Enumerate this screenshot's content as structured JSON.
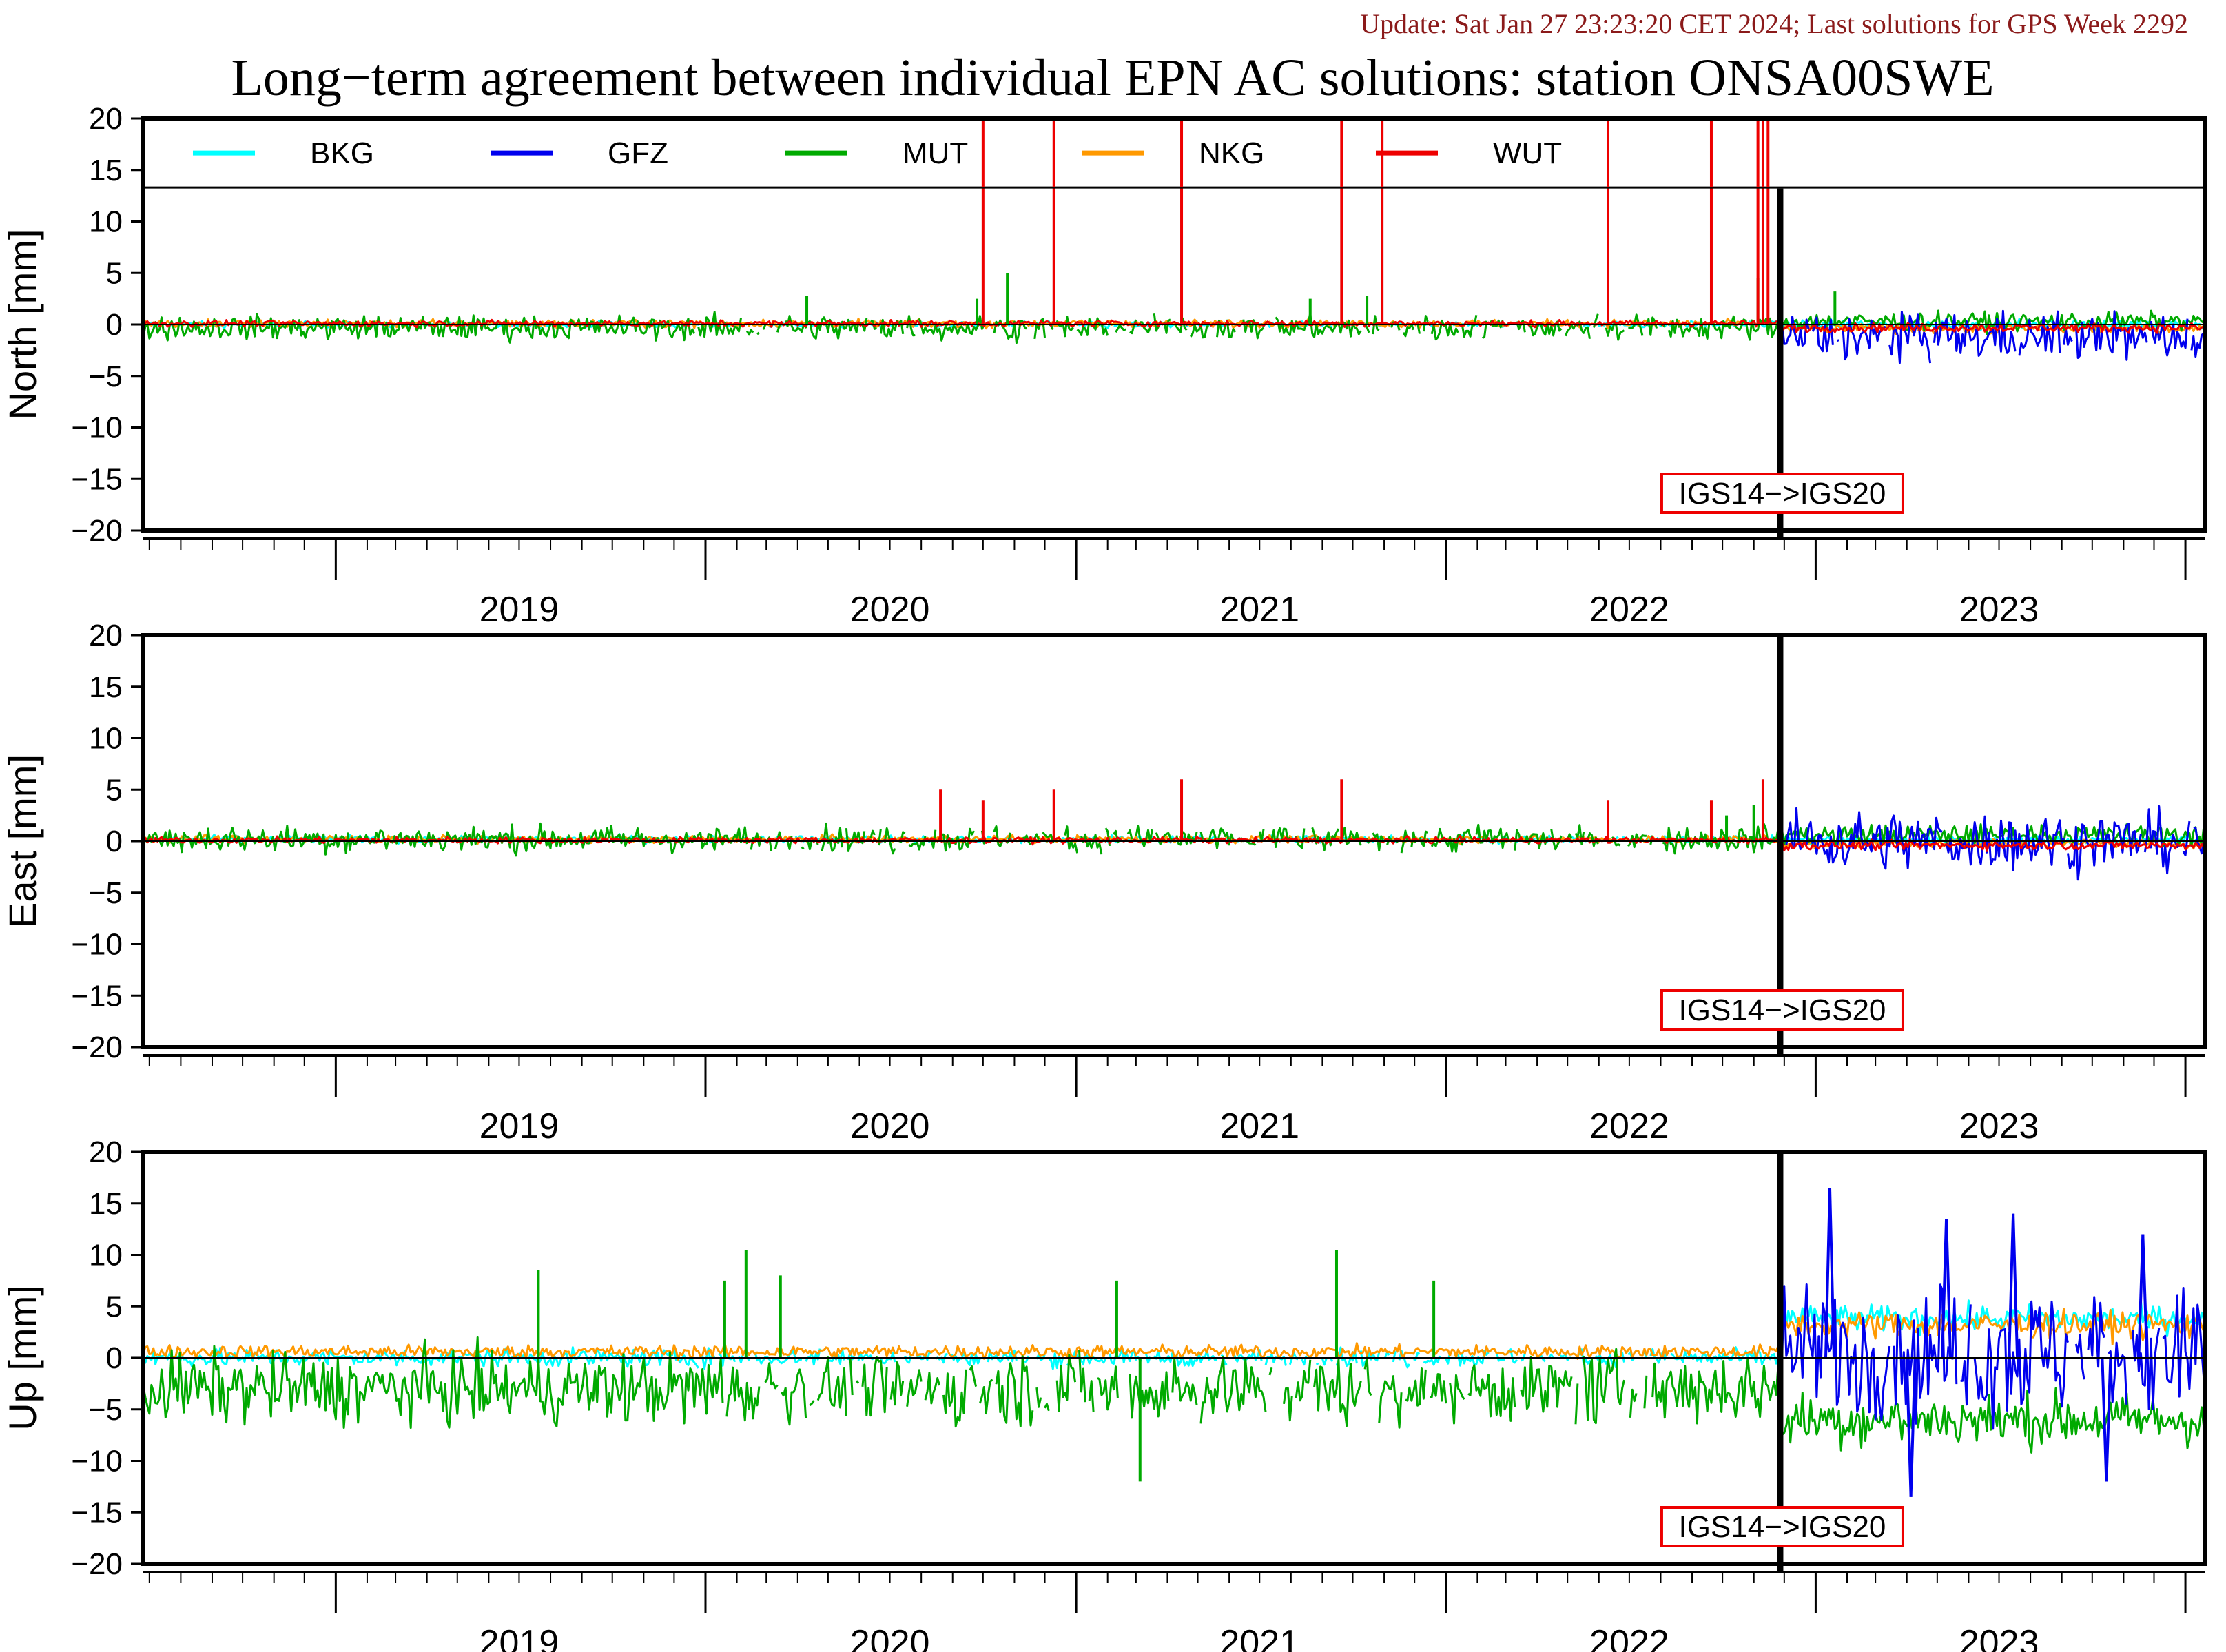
{
  "update_text": "Update: Sat Jan 27 23:23:20 CET 2024; Last solutions for GPS Week 2292",
  "colors": {
    "BKG": "#00ffff",
    "GFZ": "#0000ee",
    "MUT": "#00aa00",
    "NKG": "#ff9900",
    "WUT": "#ee0000",
    "annotation_border": "#ee0000",
    "update_text": "#8b1a1a"
  },
  "chart_data": {
    "type": "line",
    "title": "Long−term agreement between individual EPN AC solutions: station ONSA00SWE",
    "xlim": [
      "2018-06-25",
      "2024-01-20"
    ],
    "x_year_labels": [
      "2019",
      "2020",
      "2021",
      "2022",
      "2023"
    ],
    "y_tick_labels": [
      "20",
      "15",
      "10",
      "5",
      "0",
      "−5",
      "−10",
      "−15",
      "−20"
    ],
    "legend": {
      "placement": "top-inside-north-panel",
      "entries": [
        "BKG",
        "GFZ",
        "MUT",
        "NKG",
        "WUT"
      ]
    },
    "grid": false,
    "annotation": {
      "text": "IGS14−>IGS20",
      "x": "2022-11-27"
    },
    "panels": [
      {
        "ylabel": "North [mm]",
        "ylim": [
          -20,
          20
        ],
        "series": [
          {
            "name": "BKG",
            "level": 0.0,
            "noise": 0.2,
            "level_after": 0.0,
            "noise_after": 0.3
          },
          {
            "name": "GFZ",
            "start": "2022-11-27",
            "level_after": -1.2,
            "noise_after": 1.6
          },
          {
            "name": "MUT",
            "level": -0.3,
            "noise": 0.8,
            "level_after": 0.3,
            "noise_after": 0.6
          },
          {
            "name": "NKG",
            "level": 0.1,
            "noise": 0.25,
            "level_after": -0.4,
            "noise_after": 0.3
          },
          {
            "name": "WUT",
            "level": 0.1,
            "noise": 0.2,
            "level_after": -0.3,
            "noise_after": 0.3
          }
        ],
        "wut_spikes": [
          {
            "x": "2020-10-01",
            "y": 20
          },
          {
            "x": "2020-12-10",
            "y": 20
          },
          {
            "x": "2021-04-15",
            "y": 20
          },
          {
            "x": "2021-09-20",
            "y": 20
          },
          {
            "x": "2021-10-30",
            "y": 20
          },
          {
            "x": "2022-06-10",
            "y": 20
          },
          {
            "x": "2022-09-20",
            "y": 20
          },
          {
            "x": "2022-11-05",
            "y": 20
          },
          {
            "x": "2022-11-10",
            "y": 20
          },
          {
            "x": "2022-11-15",
            "y": 20
          }
        ],
        "mut_spikes": [
          {
            "x": "2020-04-10",
            "y": 2.8
          },
          {
            "x": "2020-09-25",
            "y": 2.5
          },
          {
            "x": "2020-10-25",
            "y": 5.0
          },
          {
            "x": "2021-08-20",
            "y": 2.5
          },
          {
            "x": "2021-10-15",
            "y": 2.8
          },
          {
            "x": "2022-11-05",
            "y": 4.5
          },
          {
            "x": "2023-01-20",
            "y": 3.2
          }
        ]
      },
      {
        "ylabel": "East [mm]",
        "ylim": [
          -20,
          20
        ],
        "series": [
          {
            "name": "BKG",
            "level": 0.2,
            "noise": 0.25,
            "level_after": 0.1,
            "noise_after": 0.3
          },
          {
            "name": "GFZ",
            "start": "2022-11-27",
            "level_after": 0.0,
            "noise_after": 2.0
          },
          {
            "name": "MUT",
            "level": 0.2,
            "noise": 0.9,
            "level_after": 0.6,
            "noise_after": 0.7
          },
          {
            "name": "NKG",
            "level": 0.2,
            "noise": 0.25,
            "level_after": -0.2,
            "noise_after": 0.3
          },
          {
            "name": "WUT",
            "level": 0.1,
            "noise": 0.2,
            "level_after": -0.4,
            "noise_after": 0.3
          }
        ],
        "wut_spikes": [
          {
            "x": "2020-08-20",
            "y": 5.0
          },
          {
            "x": "2020-10-01",
            "y": 4.0
          },
          {
            "x": "2020-12-10",
            "y": 5.0
          },
          {
            "x": "2021-04-15",
            "y": 6.0
          },
          {
            "x": "2021-09-20",
            "y": 6.0
          },
          {
            "x": "2022-06-10",
            "y": 4.0
          },
          {
            "x": "2022-09-20",
            "y": 4.0
          },
          {
            "x": "2022-11-10",
            "y": 6.0
          }
        ],
        "mut_spikes": [
          {
            "x": "2022-10-05",
            "y": 2.5
          },
          {
            "x": "2022-11-01",
            "y": 3.5
          }
        ]
      },
      {
        "ylabel": "Up [mm]",
        "ylim": [
          -20,
          20
        ],
        "series": [
          {
            "name": "BKG",
            "level": 0.0,
            "noise": 0.6,
            "level_after": 3.8,
            "noise_after": 0.9
          },
          {
            "name": "GFZ",
            "start": "2022-11-27",
            "level_after": 0.5,
            "noise_after": 4.5
          },
          {
            "name": "MUT",
            "level": -3.0,
            "noise": 2.4,
            "level_after": -6.0,
            "noise_after": 1.8
          },
          {
            "name": "NKG",
            "level": 0.6,
            "noise": 0.45,
            "level_after": 3.2,
            "noise_after": 0.9
          },
          {
            "name": "WUT",
            "level": 0.0,
            "noise": 0.0
          }
        ],
        "gfz_peaks": [
          {
            "x": "2023-01-15",
            "y": 16.5
          },
          {
            "x": "2023-05-10",
            "y": 13.5
          },
          {
            "x": "2023-07-15",
            "y": 14.0
          },
          {
            "x": "2023-11-20",
            "y": 12.0
          },
          {
            "x": "2023-04-05",
            "y": -13.5
          },
          {
            "x": "2023-10-15",
            "y": -12.0
          }
        ],
        "mut_spikes": [
          {
            "x": "2020-02-10",
            "y": 10.5
          },
          {
            "x": "2020-03-15",
            "y": 8.0
          },
          {
            "x": "2021-09-15",
            "y": 10.5
          },
          {
            "x": "2021-03-05",
            "y": -12.0
          },
          {
            "x": "2019-07-20",
            "y": 8.5
          },
          {
            "x": "2020-01-20",
            "y": 7.5
          },
          {
            "x": "2021-02-10",
            "y": 7.5
          },
          {
            "x": "2021-12-20",
            "y": 7.5
          }
        ]
      }
    ]
  }
}
